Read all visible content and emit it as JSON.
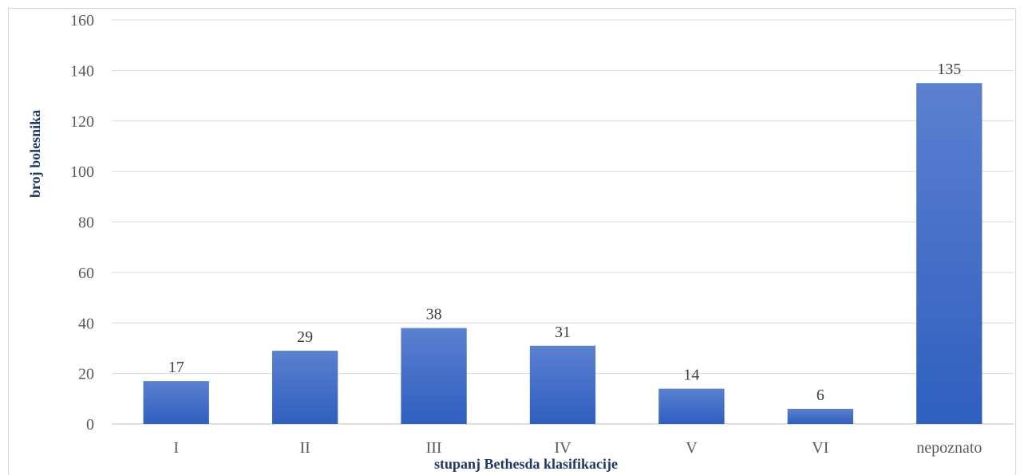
{
  "chart_data": {
    "type": "bar",
    "categories": [
      "I",
      "II",
      "III",
      "IV",
      "V",
      "VI",
      "nepoznato"
    ],
    "values": [
      17,
      29,
      38,
      31,
      14,
      6,
      135
    ],
    "xlabel": "stupanj Bethesda klasifikacije",
    "ylabel": "broj bolesnika",
    "ylim": [
      0,
      160
    ],
    "yticks": [
      0,
      20,
      40,
      60,
      80,
      100,
      120,
      140,
      160
    ],
    "grid": true,
    "legend": "none",
    "bar_color_top": "#5b80cf",
    "bar_color_bottom": "#2f5fc0"
  }
}
